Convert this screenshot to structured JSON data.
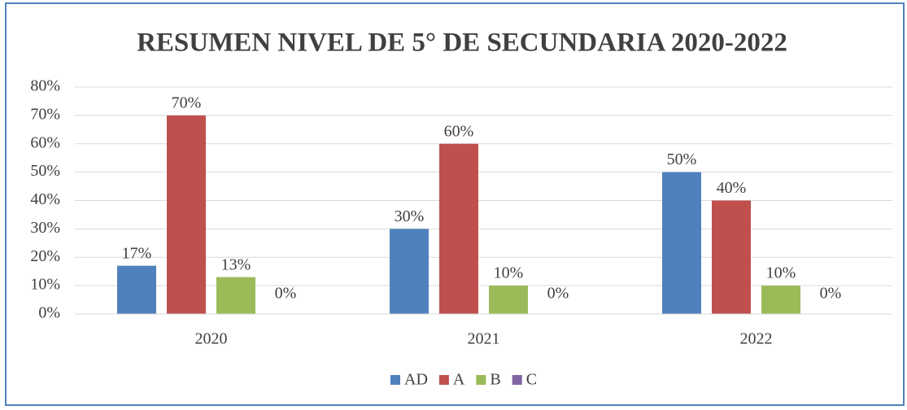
{
  "chart_data": {
    "type": "bar",
    "title": "RESUMEN NIVEL DE 5° DE SECUNDARIA 2020-2022",
    "categories": [
      "2020",
      "2021",
      "2022"
    ],
    "series": [
      {
        "name": "AD",
        "color": "#4f81bd",
        "values": [
          17,
          30,
          50
        ],
        "value_labels": [
          "17%",
          "30%",
          "50%"
        ]
      },
      {
        "name": "A",
        "color": "#c0504d",
        "values": [
          70,
          60,
          40
        ],
        "value_labels": [
          "70%",
          "60%",
          "40%"
        ]
      },
      {
        "name": "B",
        "color": "#9bbb59",
        "values": [
          13,
          10,
          10
        ],
        "value_labels": [
          "13%",
          "10%",
          "10%"
        ]
      },
      {
        "name": "C",
        "color": "#8064a2",
        "values": [
          0,
          0,
          0
        ],
        "value_labels": [
          "0%",
          "0%",
          "0%"
        ]
      }
    ],
    "ylim": [
      0,
      80
    ],
    "yticks": [
      {
        "value": 0,
        "label": "0%"
      },
      {
        "value": 10,
        "label": "10%"
      },
      {
        "value": 20,
        "label": "20%"
      },
      {
        "value": 30,
        "label": "30%"
      },
      {
        "value": 40,
        "label": "40%"
      },
      {
        "value": 50,
        "label": "50%"
      },
      {
        "value": 60,
        "label": "60%"
      },
      {
        "value": 70,
        "label": "70%"
      },
      {
        "value": 80,
        "label": "80%"
      }
    ],
    "grid": true,
    "legend": "bottom"
  }
}
